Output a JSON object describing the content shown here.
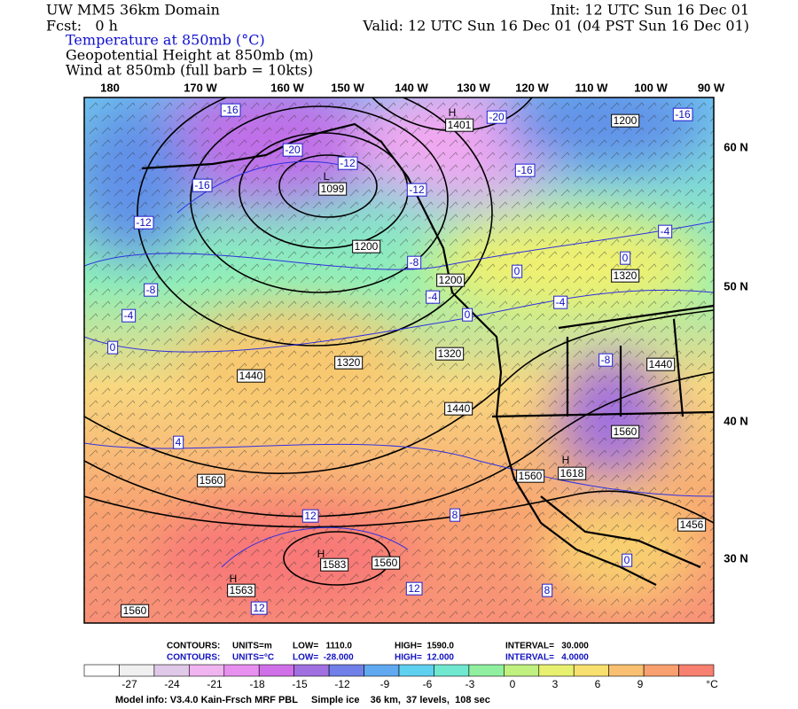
{
  "header": {
    "domain": "UW MM5 36km Domain",
    "init": "Init: 12 UTC Sun 16 Dec 01",
    "fcst": "Fcst:   0 h",
    "valid": "Valid: 12 UTC Sun 16 Dec 01 (04 PST Sun 16 Dec 01)",
    "field1": "Temperature at 850mb (°C)",
    "field2": "Geopotential Height at 850mb (m)",
    "field3": "Wind at 850mb (full barb = 10kts)"
  },
  "map": {
    "longitudes": [
      "180",
      "170 W",
      "160 W",
      "150 W",
      "140 W",
      "130 W",
      "120 W",
      "110 W",
      "100 W",
      "90 W"
    ],
    "latitudes": [
      "60 N",
      "50 N",
      "40 N",
      "30 N"
    ],
    "contour_labels": [
      "-16",
      "H",
      "1401",
      "-20",
      "1200",
      "-16",
      "-20",
      "-12",
      "-16",
      "L",
      "1099",
      "-16",
      "-12",
      "-12",
      "1200",
      "-4",
      "-8",
      "0",
      "1200",
      "0",
      "1320",
      "-8",
      "-4",
      "-4",
      "0",
      "-4",
      "0",
      "1320",
      "1320",
      "-8",
      "1440",
      "1440",
      "1440",
      "1560",
      "4",
      "H",
      "1618",
      "1560",
      "1560",
      "12",
      "8",
      "1456",
      "H",
      "1583",
      "1560",
      "H",
      "1563",
      "12",
      "8",
      "0",
      "12",
      "1560"
    ]
  },
  "footer": {
    "height_contours": [
      "CONTOURS:",
      "UNITS=m",
      "LOW=   1110.0",
      "HIGH=  1590.0",
      "INTERVAL=   30.000"
    ],
    "temp_contours": [
      "CONTOURS:",
      "UNITS=°C",
      "LOW=  -28.000",
      "HIGH=  12.000",
      "INTERVAL=   4.0000"
    ],
    "model_info": "Model info: V3.4.0 Kain-Frsch MRF PBL     Simple ice    36 km,  37 levels,  108 sec"
  },
  "colorbar": {
    "ticks": [
      -27,
      -24,
      -21,
      -18,
      -15,
      -12,
      -9,
      -6,
      -3,
      0,
      3,
      6,
      9
    ],
    "unit": "°C",
    "colors": [
      "#ffffff",
      "#f0f0f0",
      "#e0c8e8",
      "#f0b4f0",
      "#e890f0",
      "#d070e8",
      "#a070e0",
      "#7080e8",
      "#60a8f0",
      "#60d0f0",
      "#70e8d0",
      "#90f0a0",
      "#c0f080",
      "#e8f070",
      "#f8e070",
      "#f8c070",
      "#f8a070",
      "#f88070"
    ]
  }
}
